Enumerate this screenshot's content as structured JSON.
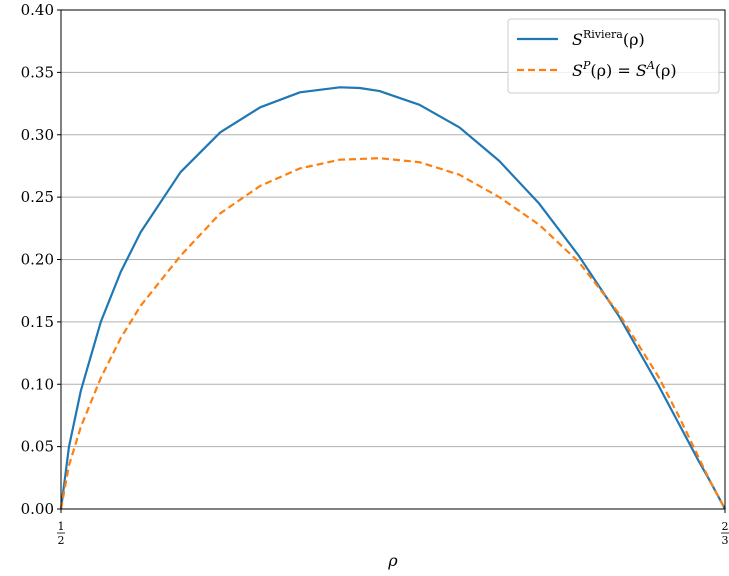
{
  "chart_data": {
    "type": "line",
    "xlabel": "ρ",
    "x_ticks": [
      {
        "value": 0.5,
        "num": "1",
        "den": "2"
      },
      {
        "value": 0.6667,
        "num": "2",
        "den": "3"
      }
    ],
    "xlim": [
      0.5,
      0.6667
    ],
    "ylim": [
      0,
      0.4
    ],
    "y_ticks": [
      "0.00",
      "0.05",
      "0.10",
      "0.15",
      "0.20",
      "0.25",
      "0.30",
      "0.35",
      "0.40"
    ],
    "grid": "horizontal",
    "legend_position": "top-right",
    "series": [
      {
        "name": "S^Riviera(ρ)",
        "name_base": "S",
        "name_sup": "Riviera",
        "name_arg": "(ρ)",
        "color": "#1f77b4",
        "style": "solid",
        "x": [
          0.5,
          0.502,
          0.505,
          0.51,
          0.515,
          0.52,
          0.53,
          0.54,
          0.55,
          0.56,
          0.57,
          0.575,
          0.58,
          0.59,
          0.6,
          0.61,
          0.62,
          0.63,
          0.64,
          0.65,
          0.655,
          0.66,
          0.663,
          0.6667
        ],
        "y": [
          0,
          0.05,
          0.095,
          0.15,
          0.19,
          0.222,
          0.27,
          0.302,
          0.322,
          0.334,
          0.338,
          0.3375,
          0.335,
          0.324,
          0.306,
          0.279,
          0.245,
          0.203,
          0.155,
          0.099,
          0.069,
          0.039,
          0.022,
          0
        ]
      },
      {
        "name": "S^P(ρ) = S^A(ρ)",
        "name_parts": [
          "S",
          "P",
          "(ρ) = ",
          "S",
          "A",
          "(ρ)"
        ],
        "color": "#ff7f0e",
        "style": "dashed",
        "x": [
          0.5,
          0.502,
          0.505,
          0.51,
          0.515,
          0.52,
          0.53,
          0.54,
          0.55,
          0.56,
          0.57,
          0.58,
          0.59,
          0.6,
          0.61,
          0.62,
          0.63,
          0.64,
          0.65,
          0.655,
          0.66,
          0.663,
          0.6667
        ],
        "y": [
          0,
          0.035,
          0.066,
          0.105,
          0.137,
          0.163,
          0.203,
          0.237,
          0.259,
          0.273,
          0.28,
          0.2812,
          0.278,
          0.268,
          0.25,
          0.228,
          0.198,
          0.157,
          0.106,
          0.075,
          0.042,
          0.022,
          0
        ]
      }
    ]
  }
}
